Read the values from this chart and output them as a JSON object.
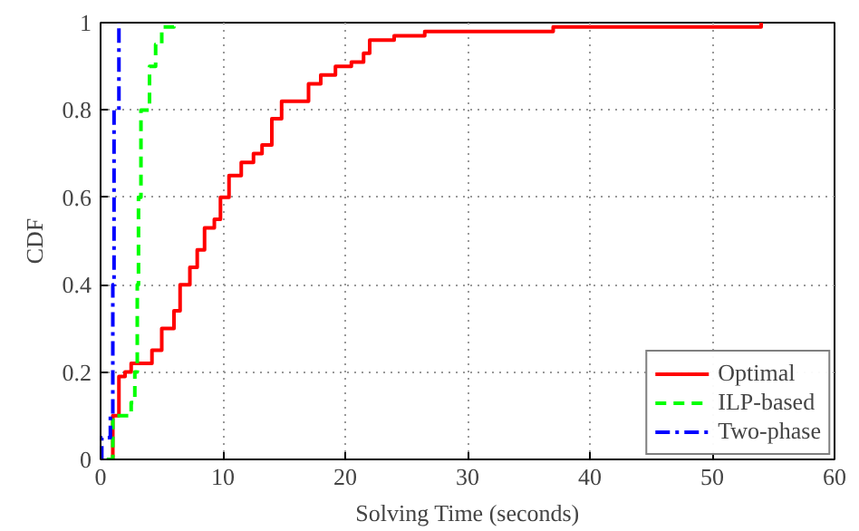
{
  "chart_data": {
    "type": "step",
    "xlabel": "Solving Time (seconds)",
    "ylabel": "CDF",
    "xlim": [
      0,
      60
    ],
    "ylim": [
      0,
      1
    ],
    "xticks": [
      0,
      10,
      20,
      30,
      40,
      50,
      60
    ],
    "yticks": [
      0,
      0.2,
      0.4,
      0.6,
      0.8,
      1
    ],
    "grid": true,
    "legend": "bottom right",
    "marker": "none",
    "series": [
      {
        "name": "Optimal",
        "color": "#ff0000",
        "line_style": "solid",
        "x": [
          0.7,
          1,
          1.5,
          2,
          2.5,
          3.5,
          4.2,
          5,
          6,
          6.5,
          7.3,
          7.9,
          8.5,
          9.3,
          9.8,
          10.5,
          11.5,
          12.5,
          13.2,
          14,
          14.8,
          16.7,
          17,
          18,
          19.2,
          20.5,
          21.5,
          22,
          24,
          26.5,
          37,
          54
        ],
        "values": [
          0,
          0.1,
          0.19,
          0.2,
          0.22,
          0.22,
          0.25,
          0.3,
          0.34,
          0.4,
          0.44,
          0.48,
          0.53,
          0.55,
          0.6,
          0.65,
          0.68,
          0.7,
          0.72,
          0.78,
          0.82,
          0.82,
          0.86,
          0.88,
          0.9,
          0.91,
          0.93,
          0.96,
          0.97,
          0.98,
          0.99,
          1
        ]
      },
      {
        "name": "ILP-based",
        "color": "#00ff00",
        "line_style": "dashed",
        "x": [
          0.5,
          1,
          2,
          2.5,
          2.8,
          3,
          3.1,
          3.3,
          4,
          4.5,
          5,
          6
        ],
        "values": [
          0,
          0.1,
          0.1,
          0.13,
          0.2,
          0.4,
          0.6,
          0.8,
          0.9,
          0.95,
          0.99,
          1
        ]
      },
      {
        "name": "Two-phase",
        "color": "#0000ff",
        "line_style": "dashdot",
        "x": [
          0,
          0.1,
          0.8,
          1,
          1.1,
          1.5
        ],
        "values": [
          0,
          0.05,
          0.1,
          0.4,
          0.8,
          1
        ]
      }
    ]
  }
}
